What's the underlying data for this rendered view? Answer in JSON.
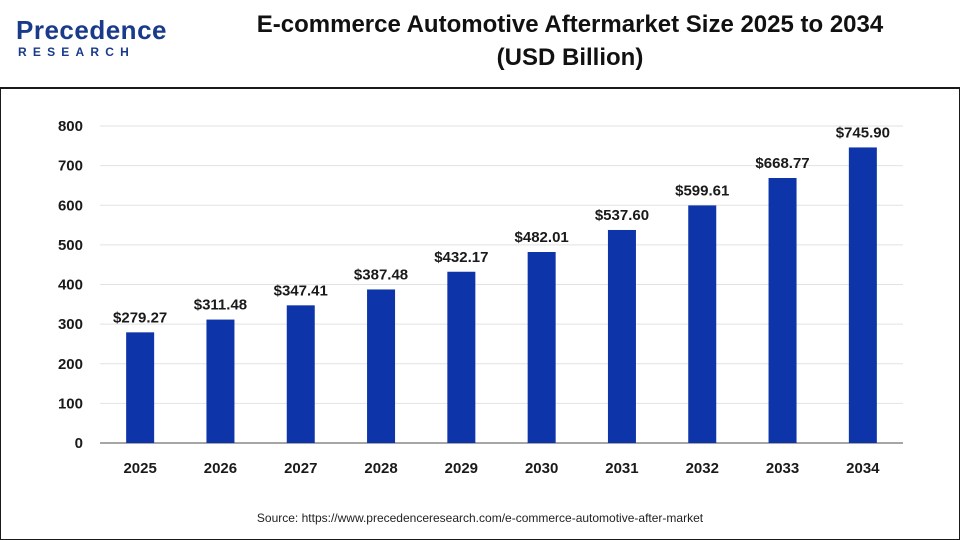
{
  "brand": {
    "name_prefix": "P",
    "name_rest": "recedence",
    "sub": "RESEARCH",
    "color": "#1a3a8a"
  },
  "title_line1": "E-commerce Automotive Aftermarket Size 2025 to 2034",
  "title_line2": "(USD Billion)",
  "source": "Source: https://www.precedenceresearch.com/e-commerce-automotive-after-market",
  "chart_data": {
    "type": "bar",
    "categories": [
      "2025",
      "2026",
      "2027",
      "2028",
      "2029",
      "2030",
      "2031",
      "2032",
      "2033",
      "2034"
    ],
    "values": [
      279.27,
      311.48,
      347.41,
      387.48,
      432.17,
      482.01,
      537.6,
      599.61,
      668.77,
      745.9
    ],
    "data_labels": [
      "$279.27",
      "$311.48",
      "$347.41",
      "$387.48",
      "$432.17",
      "$482.01",
      "$537.60",
      "$599.61",
      "$668.77",
      "$745.90"
    ],
    "yticks": [
      0,
      100,
      200,
      300,
      400,
      500,
      600,
      700,
      800
    ],
    "ylim": [
      0,
      800
    ],
    "bar_color": "#0d34a8",
    "grid": true
  }
}
